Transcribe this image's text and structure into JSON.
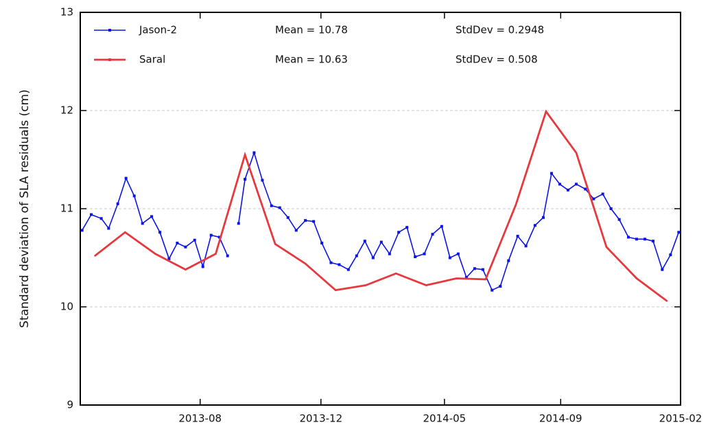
{
  "chart_data": {
    "type": "line",
    "y_label": "Standard deviation of SLA residuals (cm)",
    "xlim": [
      0,
      656
    ],
    "xticks": [
      {
        "value": 131,
        "label": "2013-08"
      },
      {
        "value": 263,
        "label": "2013-12"
      },
      {
        "value": 398,
        "label": "2014-05"
      },
      {
        "value": 525,
        "label": "2014-09"
      },
      {
        "value": 656,
        "label": "2015-02"
      }
    ],
    "ylim": [
      9,
      13
    ],
    "yticks": [
      9,
      10,
      11,
      12,
      13
    ],
    "grid": true,
    "legend": "upper left",
    "annotations": [
      [
        "Mean = 10.78",
        "StdDev = 0.2948"
      ],
      [
        "Mean = 10.63",
        "StdDev = 0.508"
      ]
    ],
    "series": [
      {
        "name": "Jason-2",
        "color": "#0a14e6",
        "marker": true,
        "x": [
          2,
          12,
          23,
          31,
          41,
          50,
          59,
          68,
          78,
          87,
          97,
          106,
          115,
          125,
          134,
          143,
          152,
          161,
          167,
          173,
          180,
          190,
          199,
          209,
          218,
          227,
          236,
          246,
          255,
          264,
          274,
          283,
          293,
          302,
          311,
          320,
          329,
          338,
          348,
          357,
          366,
          376,
          385,
          395,
          404,
          413,
          422,
          431,
          440,
          450,
          459,
          468,
          478,
          487,
          497,
          506,
          515,
          524,
          533,
          542,
          552,
          561,
          571,
          580,
          589,
          599,
          608,
          617,
          626,
          636,
          645,
          654
        ],
        "values": [
          10.78,
          10.94,
          10.9,
          10.8,
          11.05,
          11.31,
          11.13,
          10.85,
          10.92,
          10.76,
          10.49,
          10.65,
          10.61,
          10.68,
          10.41,
          10.73,
          10.71,
          10.52,
          null,
          10.85,
          11.3,
          11.57,
          11.29,
          11.03,
          11.01,
          10.91,
          10.78,
          10.88,
          10.87,
          10.65,
          10.45,
          10.43,
          10.38,
          10.52,
          10.67,
          10.5,
          10.66,
          10.54,
          10.76,
          10.81,
          10.51,
          10.54,
          10.74,
          10.82,
          10.5,
          10.54,
          10.3,
          10.39,
          10.38,
          10.17,
          10.21,
          10.47,
          10.72,
          10.62,
          10.83,
          10.91,
          11.36,
          11.25,
          11.19,
          11.25,
          11.2,
          11.1,
          11.15,
          11.0,
          10.89,
          10.71,
          10.69,
          10.69,
          10.67,
          10.38,
          10.53,
          10.76
        ]
      },
      {
        "name": "Saral",
        "color": "#e8383d",
        "marker": false,
        "x": [
          16,
          49,
          82,
          115,
          148,
          180,
          213,
          246,
          279,
          312,
          345,
          378,
          411,
          443,
          476,
          509,
          542,
          575,
          608,
          641
        ],
        "values": [
          10.52,
          10.76,
          10.54,
          10.38,
          10.54,
          11.55,
          10.64,
          10.44,
          10.17,
          10.22,
          10.34,
          10.22,
          10.29,
          10.28,
          11.04,
          11.99,
          11.57,
          10.61,
          10.29,
          10.06
        ]
      }
    ]
  }
}
